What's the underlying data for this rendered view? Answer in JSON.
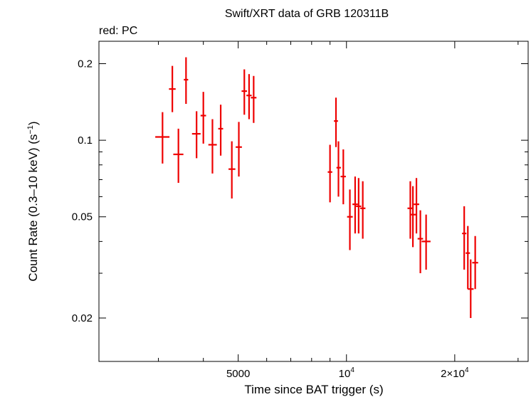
{
  "chart_data": {
    "type": "scatter",
    "title": "Swift/XRT data of GRB 120311B",
    "subtitle": "red: PC",
    "xlabel": "Time since BAT trigger (s)",
    "ylabel_main": "Count Rate (0.3–10 keV) (s",
    "ylabel_sup": "−1",
    "ylabel_close": ")",
    "x_scale": "log",
    "y_scale": "log",
    "xlim": [
      2050,
      32000
    ],
    "ylim": [
      0.0135,
      0.245
    ],
    "x_ticks": [
      {
        "value": 5000,
        "label": "5000"
      },
      {
        "value": 10000,
        "label": "10",
        "sup": "4"
      },
      {
        "value": 20000,
        "label": "2×10",
        "sup": "4"
      }
    ],
    "y_ticks": [
      {
        "value": 0.2,
        "label": "0.2"
      },
      {
        "value": 0.1,
        "label": "0.1"
      },
      {
        "value": 0.05,
        "label": "0.05"
      },
      {
        "value": 0.02,
        "label": "0.02"
      }
    ],
    "series_color": "#ee0000",
    "points": [
      {
        "t": 3080,
        "t_lo": 2940,
        "t_hi": 3220,
        "rate": 0.103,
        "err_lo": 0.081,
        "err_hi": 0.129
      },
      {
        "t": 3280,
        "t_lo": 3210,
        "t_hi": 3350,
        "rate": 0.159,
        "err_lo": 0.129,
        "err_hi": 0.196
      },
      {
        "t": 3410,
        "t_lo": 3300,
        "t_hi": 3520,
        "rate": 0.088,
        "err_lo": 0.068,
        "err_hi": 0.111
      },
      {
        "t": 3580,
        "t_lo": 3530,
        "t_hi": 3630,
        "rate": 0.173,
        "err_lo": 0.139,
        "err_hi": 0.212
      },
      {
        "t": 3830,
        "t_lo": 3720,
        "t_hi": 3930,
        "rate": 0.106,
        "err_lo": 0.085,
        "err_hi": 0.13
      },
      {
        "t": 4000,
        "t_lo": 3930,
        "t_hi": 4070,
        "rate": 0.125,
        "err_lo": 0.097,
        "err_hi": 0.155
      },
      {
        "t": 4240,
        "t_lo": 4130,
        "t_hi": 4360,
        "rate": 0.096,
        "err_lo": 0.074,
        "err_hi": 0.121
      },
      {
        "t": 4470,
        "t_lo": 4400,
        "t_hi": 4540,
        "rate": 0.111,
        "err_lo": 0.087,
        "err_hi": 0.138
      },
      {
        "t": 4800,
        "t_lo": 4700,
        "t_hi": 4910,
        "rate": 0.077,
        "err_lo": 0.059,
        "err_hi": 0.099
      },
      {
        "t": 5020,
        "t_lo": 4920,
        "t_hi": 5120,
        "rate": 0.094,
        "err_lo": 0.072,
        "err_hi": 0.118
      },
      {
        "t": 5200,
        "t_lo": 5110,
        "t_hi": 5290,
        "rate": 0.156,
        "err_lo": 0.126,
        "err_hi": 0.19
      },
      {
        "t": 5360,
        "t_lo": 5270,
        "t_hi": 5450,
        "rate": 0.15,
        "err_lo": 0.121,
        "err_hi": 0.182
      },
      {
        "t": 5520,
        "t_lo": 5420,
        "t_hi": 5620,
        "rate": 0.147,
        "err_lo": 0.117,
        "err_hi": 0.179
      },
      {
        "t": 9000,
        "t_lo": 8870,
        "t_hi": 9130,
        "rate": 0.075,
        "err_lo": 0.057,
        "err_hi": 0.096
      },
      {
        "t": 9350,
        "t_lo": 9230,
        "t_hi": 9470,
        "rate": 0.119,
        "err_lo": 0.094,
        "err_hi": 0.147
      },
      {
        "t": 9500,
        "t_lo": 9380,
        "t_hi": 9650,
        "rate": 0.078,
        "err_lo": 0.06,
        "err_hi": 0.099
      },
      {
        "t": 9800,
        "t_lo": 9630,
        "t_hi": 9960,
        "rate": 0.072,
        "err_lo": 0.056,
        "err_hi": 0.092
      },
      {
        "t": 10220,
        "t_lo": 10040,
        "t_hi": 10410,
        "rate": 0.05,
        "err_lo": 0.037,
        "err_hi": 0.064
      },
      {
        "t": 10570,
        "t_lo": 10390,
        "t_hi": 10760,
        "rate": 0.056,
        "err_lo": 0.043,
        "err_hi": 0.072
      },
      {
        "t": 10810,
        "t_lo": 10630,
        "t_hi": 10990,
        "rate": 0.055,
        "err_lo": 0.043,
        "err_hi": 0.071
      },
      {
        "t": 11100,
        "t_lo": 10920,
        "t_hi": 11290,
        "rate": 0.054,
        "err_lo": 0.041,
        "err_hi": 0.069
      },
      {
        "t": 15050,
        "t_lo": 14780,
        "t_hi": 15320,
        "rate": 0.054,
        "err_lo": 0.041,
        "err_hi": 0.069
      },
      {
        "t": 15300,
        "t_lo": 15040,
        "t_hi": 15580,
        "rate": 0.051,
        "err_lo": 0.038,
        "err_hi": 0.066
      },
      {
        "t": 15650,
        "t_lo": 15380,
        "t_hi": 15930,
        "rate": 0.056,
        "err_lo": 0.043,
        "err_hi": 0.071
      },
      {
        "t": 16050,
        "t_lo": 15770,
        "t_hi": 16330,
        "rate": 0.041,
        "err_lo": 0.03,
        "err_hi": 0.053
      },
      {
        "t": 16650,
        "t_lo": 16180,
        "t_hi": 17130,
        "rate": 0.04,
        "err_lo": 0.031,
        "err_hi": 0.051
      },
      {
        "t": 21250,
        "t_lo": 20960,
        "t_hi": 21550,
        "rate": 0.043,
        "err_lo": 0.031,
        "err_hi": 0.055
      },
      {
        "t": 21750,
        "t_lo": 21450,
        "t_hi": 22050,
        "rate": 0.036,
        "err_lo": 0.026,
        "err_hi": 0.046
      },
      {
        "t": 22150,
        "t_lo": 21740,
        "t_hi": 22570,
        "rate": 0.026,
        "err_lo": 0.02,
        "err_hi": 0.034
      },
      {
        "t": 22800,
        "t_lo": 22370,
        "t_hi": 23230,
        "rate": 0.033,
        "err_lo": 0.026,
        "err_hi": 0.042
      }
    ]
  }
}
